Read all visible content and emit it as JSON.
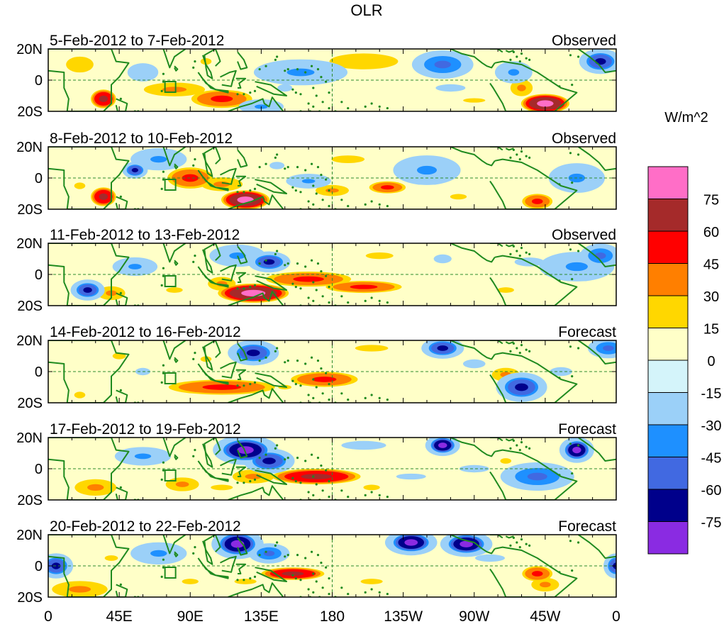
{
  "chart_data": {
    "type": "heatmap",
    "title": "OLR",
    "variable": "Outgoing Longwave Radiation anomaly",
    "colorbar_unit": "W/m^2",
    "colorbar_levels": [
      75,
      60,
      45,
      30,
      15,
      0,
      -15,
      -30,
      -45,
      -60,
      -75
    ],
    "colorbar_colors": [
      "#FF6EC7",
      "#A52A2A",
      "#FF0000",
      "#FF7F00",
      "#FFD700",
      "#FFFFC8",
      "#D4F4FA",
      "#9BD0F8",
      "#1E90FF",
      "#4169E1",
      "#00008B",
      "#8A2BE2"
    ],
    "x_ticks": [
      "0",
      "45E",
      "90E",
      "135E",
      "180",
      "135W",
      "90W",
      "45W",
      "0"
    ],
    "y_ticks": [
      "20N",
      "0",
      "20S"
    ],
    "lat_range": [
      -20,
      20
    ],
    "lon_range": [
      0,
      360
    ],
    "panels": [
      {
        "period": "5-Feb-2012 to 7-Feb-2012",
        "type": "Observed",
        "blobs": [
          [
            35,
            -12,
            8,
            6,
            60
          ],
          [
            20,
            10,
            12,
            7,
            20
          ],
          [
            60,
            5,
            10,
            6,
            -20
          ],
          [
            80,
            -6,
            22,
            5,
            30
          ],
          [
            110,
            -12,
            20,
            6,
            45
          ],
          [
            135,
            -17,
            12,
            4,
            -30
          ],
          [
            160,
            5,
            25,
            7,
            -30
          ],
          [
            150,
            -5,
            10,
            5,
            -15
          ],
          [
            200,
            12,
            30,
            7,
            20
          ],
          [
            250,
            10,
            15,
            7,
            -45
          ],
          [
            255,
            -5,
            20,
            5,
            -15
          ],
          [
            295,
            5,
            10,
            6,
            -30
          ],
          [
            315,
            -15,
            15,
            6,
            75
          ],
          [
            300,
            -5,
            8,
            6,
            30
          ],
          [
            350,
            12,
            10,
            6,
            -60
          ],
          [
            270,
            -13,
            20,
            4,
            15
          ],
          [
            100,
            12,
            10,
            6,
            15
          ]
        ]
      },
      {
        "period": "8-Feb-2012 to 10-Feb-2012",
        "type": "Observed",
        "blobs": [
          [
            35,
            -12,
            8,
            6,
            60
          ],
          [
            55,
            5,
            6,
            4,
            -60
          ],
          [
            90,
            0,
            15,
            7,
            45
          ],
          [
            125,
            -14,
            15,
            6,
            75
          ],
          [
            110,
            -4,
            15,
            5,
            30
          ],
          [
            165,
            -2,
            12,
            4,
            -30
          ],
          [
            180,
            -8,
            12,
            4,
            30
          ],
          [
            190,
            12,
            30,
            7,
            15
          ],
          [
            215,
            -6,
            12,
            4,
            45
          ],
          [
            240,
            5,
            18,
            8,
            -30
          ],
          [
            310,
            -15,
            10,
            5,
            45
          ],
          [
            335,
            0,
            15,
            8,
            -30
          ],
          [
            70,
            12,
            15,
            6,
            -30
          ],
          [
            260,
            -12,
            15,
            5,
            15
          ],
          [
            20,
            -5,
            10,
            6,
            15
          ],
          [
            145,
            8,
            10,
            5,
            -15
          ]
        ]
      },
      {
        "period": "11-Feb-2012 to 13-Feb-2012",
        "type": "Observed",
        "blobs": [
          [
            130,
            -12,
            22,
            6,
            75
          ],
          [
            110,
            -6,
            10,
            5,
            30
          ],
          [
            165,
            -3,
            28,
            5,
            45
          ],
          [
            200,
            -8,
            25,
            4,
            45
          ],
          [
            120,
            12,
            15,
            6,
            -30
          ],
          [
            140,
            8,
            10,
            5,
            -60
          ],
          [
            55,
            5,
            12,
            5,
            -30
          ],
          [
            25,
            -10,
            8,
            5,
            -60
          ],
          [
            40,
            -12,
            10,
            5,
            30
          ],
          [
            210,
            12,
            25,
            6,
            15
          ],
          [
            305,
            8,
            20,
            6,
            -15
          ],
          [
            335,
            5,
            20,
            8,
            -30
          ],
          [
            250,
            10,
            12,
            6,
            -15
          ],
          [
            350,
            12,
            10,
            6,
            -45
          ],
          [
            80,
            -10,
            15,
            5,
            15
          ],
          [
            290,
            -10,
            15,
            5,
            15
          ]
        ]
      },
      {
        "period": "14-Feb-2012 to 16-Feb-2012",
        "type": "Forecast",
        "blobs": [
          [
            110,
            -10,
            35,
            5,
            45
          ],
          [
            150,
            -10,
            12,
            4,
            15
          ],
          [
            175,
            -5,
            22,
            5,
            45
          ],
          [
            130,
            12,
            12,
            6,
            -60
          ],
          [
            250,
            15,
            10,
            5,
            -60
          ],
          [
            300,
            -10,
            12,
            7,
            -60
          ],
          [
            290,
            -2,
            10,
            5,
            30
          ],
          [
            20,
            -15,
            10,
            6,
            15
          ],
          [
            45,
            10,
            12,
            6,
            15
          ],
          [
            325,
            0,
            15,
            6,
            -15
          ],
          [
            355,
            15,
            10,
            5,
            -45
          ],
          [
            205,
            15,
            30,
            6,
            15
          ],
          [
            60,
            0,
            10,
            5,
            -15
          ],
          [
            100,
            8,
            10,
            5,
            15
          ],
          [
            270,
            5,
            15,
            6,
            -15
          ]
        ]
      },
      {
        "period": "17-Feb-2012 to 19-Feb-2012",
        "type": "Forecast",
        "blobs": [
          [
            125,
            12,
            15,
            7,
            -75
          ],
          [
            140,
            5,
            12,
            6,
            -60
          ],
          [
            170,
            -5,
            28,
            5,
            60
          ],
          [
            130,
            -5,
            15,
            5,
            30
          ],
          [
            110,
            -12,
            20,
            5,
            15
          ],
          [
            30,
            -12,
            15,
            6,
            30
          ],
          [
            85,
            -10,
            12,
            5,
            30
          ],
          [
            250,
            15,
            8,
            5,
            -75
          ],
          [
            335,
            12,
            8,
            6,
            -75
          ],
          [
            310,
            -5,
            18,
            7,
            -45
          ],
          [
            290,
            5,
            10,
            5,
            15
          ],
          [
            205,
            -12,
            15,
            5,
            15
          ],
          [
            60,
            8,
            15,
            5,
            -30
          ],
          [
            200,
            15,
            30,
            6,
            -15
          ],
          [
            230,
            -5,
            20,
            4,
            -15
          ],
          [
            270,
            0,
            20,
            5,
            -15
          ]
        ]
      },
      {
        "period": "20-Feb-2012 to 22-Feb-2012",
        "type": "Forecast",
        "blobs": [
          [
            120,
            14,
            12,
            7,
            -75
          ],
          [
            140,
            8,
            10,
            5,
            -45
          ],
          [
            155,
            -5,
            20,
            4,
            60
          ],
          [
            125,
            -10,
            20,
            5,
            15
          ],
          [
            230,
            15,
            12,
            6,
            -75
          ],
          [
            265,
            14,
            12,
            6,
            -75
          ],
          [
            310,
            -5,
            10,
            5,
            45
          ],
          [
            5,
            0,
            8,
            6,
            -60
          ],
          [
            360,
            0,
            6,
            6,
            -60
          ],
          [
            20,
            -15,
            20,
            6,
            30
          ],
          [
            70,
            8,
            15,
            6,
            -30
          ],
          [
            205,
            -10,
            20,
            5,
            15
          ],
          [
            315,
            -12,
            10,
            5,
            30
          ],
          [
            40,
            5,
            12,
            5,
            15
          ],
          [
            280,
            5,
            20,
            5,
            -15
          ],
          [
            90,
            -10,
            15,
            5,
            15
          ]
        ]
      }
    ]
  }
}
